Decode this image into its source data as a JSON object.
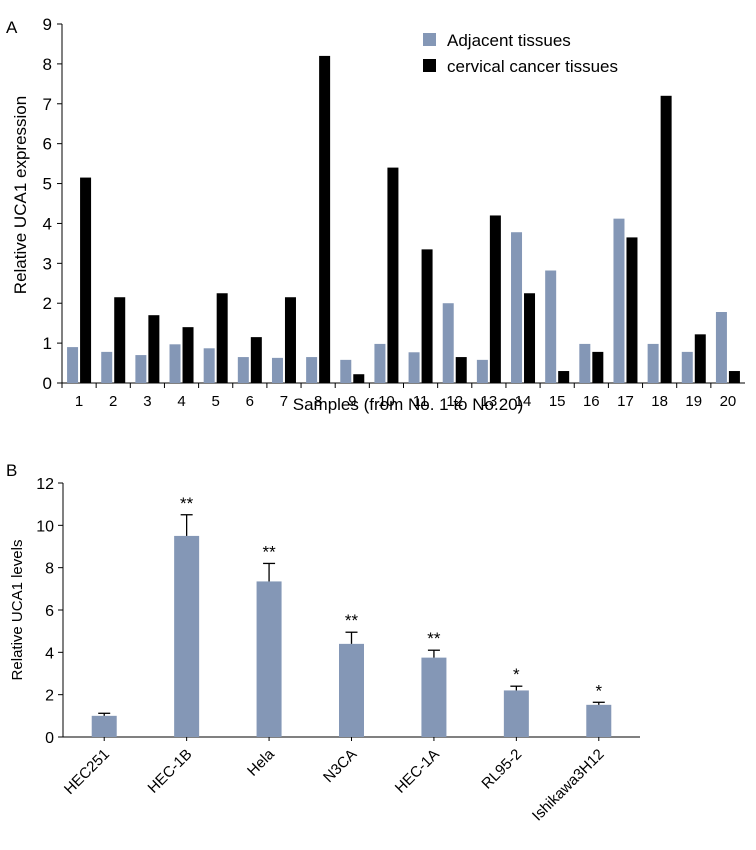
{
  "colors": {
    "adjacent": "#8497b6",
    "cancer": "#000000",
    "cell_bar": "#8497b6",
    "axis": "#000000"
  },
  "chart_data": [
    {
      "panel": "A",
      "type": "bar",
      "xlabel": "Samples   (from No. 1 to No.20)",
      "ylabel": "Relative UCA1 expression",
      "ylim": [
        0,
        9
      ],
      "yticks": [
        0,
        1,
        2,
        3,
        4,
        5,
        6,
        7,
        8,
        9
      ],
      "categories": [
        "1",
        "2",
        "3",
        "4",
        "5",
        "6",
        "7",
        "8",
        "9",
        "10",
        "11",
        "12",
        "13",
        "14",
        "15",
        "16",
        "17",
        "18",
        "19",
        "20"
      ],
      "series": [
        {
          "name": "Adjacent tissues",
          "color_key": "adjacent",
          "values": [
            0.9,
            0.78,
            0.7,
            0.97,
            0.87,
            0.65,
            0.63,
            0.65,
            0.58,
            0.98,
            0.77,
            2.0,
            0.58,
            3.78,
            2.82,
            0.98,
            4.12,
            0.98,
            0.78,
            1.78
          ]
        },
        {
          "name": "cervical cancer tissues",
          "color_key": "cancer",
          "values": [
            5.15,
            2.15,
            1.7,
            1.4,
            2.25,
            1.15,
            2.15,
            8.2,
            0.22,
            5.4,
            3.35,
            0.65,
            4.2,
            2.25,
            0.3,
            0.78,
            3.65,
            7.2,
            1.22,
            0.3
          ]
        }
      ],
      "legend": "top-right",
      "grid": false
    },
    {
      "panel": "B",
      "type": "bar",
      "xlabel": "",
      "ylabel": "Relative UCA1 levels",
      "ylim": [
        0,
        12
      ],
      "yticks": [
        0,
        2,
        4,
        6,
        8,
        10,
        12
      ],
      "categories": [
        "HEC251",
        "HEC-1B",
        "Hela",
        "N3CA",
        "HEC-1A",
        "RL95-2",
        "Ishikawa3H12"
      ],
      "values": [
        1.0,
        9.5,
        7.35,
        4.4,
        3.75,
        2.2,
        1.52
      ],
      "errors": [
        0.12,
        1.0,
        0.85,
        0.55,
        0.35,
        0.2,
        0.12
      ],
      "annotations": [
        "",
        "**",
        "**",
        "**",
        "**",
        "*",
        "*"
      ],
      "grid": false
    }
  ]
}
